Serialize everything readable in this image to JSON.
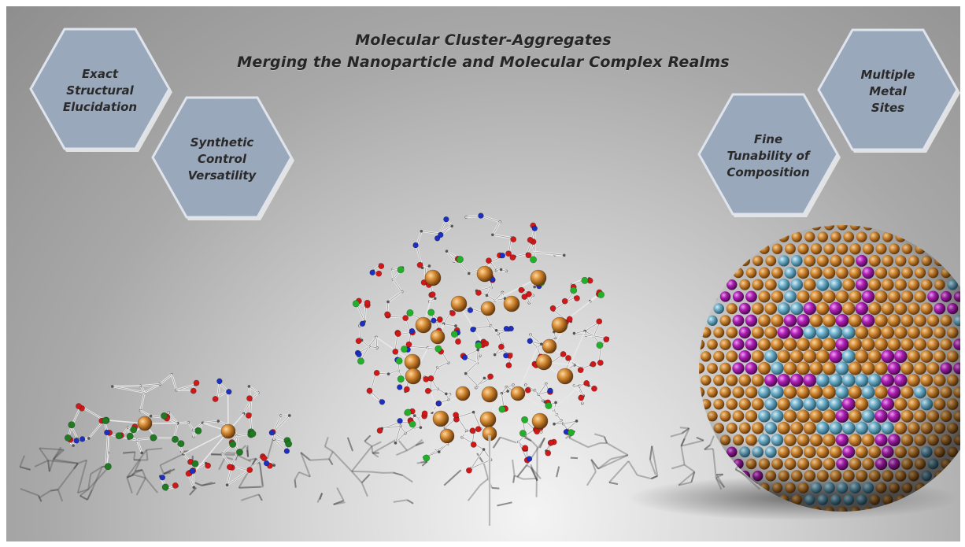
{
  "title": {
    "line1": "Molecular Cluster-Aggregates",
    "line2": "Merging the Nanoparticle and Molecular Complex Realms"
  },
  "hexagons": [
    {
      "lines": [
        "Exact",
        "Structural",
        "Elucidation"
      ]
    },
    {
      "lines": [
        "Synthetic",
        "Control",
        "Versatility"
      ]
    },
    {
      "lines": [
        "Fine",
        "Tunability of",
        "Composition"
      ]
    },
    {
      "lines": [
        "Multiple",
        "Metal",
        "Sites"
      ]
    }
  ],
  "colors": {
    "metal_orange": "#c9822e",
    "magenta": "#b21fb8",
    "light_blue": "#6fb3cf",
    "oxygen_red": "#d01818",
    "nitrogen_blue": "#1d2fc0",
    "chlorine_green": "#22b02a",
    "hex_fill": "#9aa8bc"
  }
}
